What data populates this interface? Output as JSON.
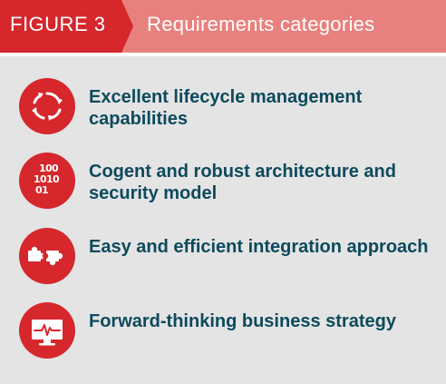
{
  "header": {
    "tag": "FIGURE 3",
    "title": "Requirements categories"
  },
  "colors": {
    "accent": "#d5272c",
    "accent_light": "#e8817e",
    "panel": "#e4e4e5",
    "text": "#0d4a5c"
  },
  "items": [
    {
      "icon": "lifecycle-arrows-icon",
      "label": "Excellent lifecycle management capabilities"
    },
    {
      "icon": "binary-code-icon",
      "label": "Cogent and robust architecture and security model"
    },
    {
      "icon": "puzzle-pieces-icon",
      "label": "Easy and efficient integration approach"
    },
    {
      "icon": "monitor-pulse-icon",
      "label": "Forward-thinking business strategy"
    }
  ]
}
